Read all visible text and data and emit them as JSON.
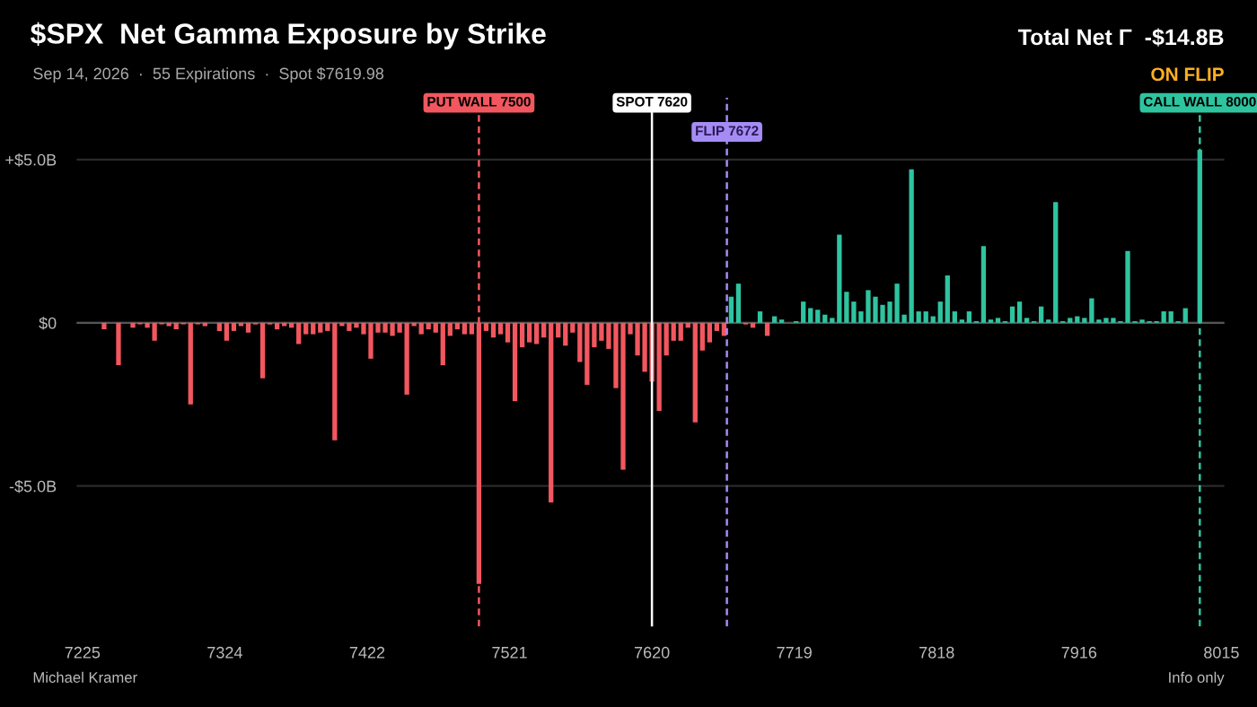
{
  "chart_data": {
    "type": "bar",
    "title": "$SPX  Net Gamma Exposure by Strike",
    "subtitle": "Sep 14, 2026  ·  55 Expirations  ·  Spot $7619.98",
    "annotations": [
      "Total Net Γ  -$14.8B",
      "ON FLIP",
      "Michael Kramer",
      "Info only"
    ],
    "series": [
      {
        "color": "#f2575f",
        "x": [
          7225,
          7230,
          7235,
          7240,
          7245,
          7250,
          7255,
          7260,
          7265,
          7270,
          7275,
          7280,
          7285,
          7290,
          7295,
          7300,
          7305,
          7310,
          7315,
          7320,
          7325,
          7330,
          7335,
          7340,
          7345,
          7350,
          7355,
          7360,
          7365,
          7370,
          7375,
          7380,
          7385,
          7390,
          7395,
          7400,
          7405,
          7410,
          7415,
          7420,
          7425,
          7430,
          7435,
          7440,
          7445,
          7450,
          7455,
          7460,
          7465,
          7470,
          7475,
          7480,
          7485,
          7490,
          7495,
          7500,
          7505,
          7510,
          7515,
          7520,
          7525,
          7530,
          7535,
          7540,
          7545,
          7550,
          7555,
          7560,
          7565,
          7570,
          7575,
          7580,
          7585,
          7590,
          7595,
          7600,
          7605,
          7610,
          7615,
          7620,
          7625,
          7630,
          7635,
          7640,
          7645,
          7650,
          7655,
          7660,
          7665,
          7670,
          7685,
          7690,
          7700
        ],
        "values": [
          0,
          0,
          0,
          -0.2,
          0,
          -1.3,
          0,
          -0.15,
          -0.05,
          -0.15,
          -0.55,
          -0.05,
          -0.1,
          -0.2,
          -0.05,
          -2.5,
          -0.05,
          -0.1,
          0,
          -0.25,
          -0.55,
          -0.25,
          -0.1,
          -0.3,
          -0.05,
          -1.7,
          -0.05,
          -0.2,
          -0.1,
          -0.15,
          -0.65,
          -0.35,
          -0.35,
          -0.3,
          -0.25,
          -3.6,
          -0.1,
          -0.25,
          -0.15,
          -0.35,
          -1.1,
          -0.3,
          -0.3,
          -0.4,
          -0.3,
          -2.2,
          -0.1,
          -0.35,
          -0.2,
          -0.3,
          -1.3,
          -0.4,
          -0.2,
          -0.35,
          -0.35,
          -8.0,
          -0.25,
          -0.45,
          -0.35,
          -0.6,
          -2.4,
          -0.75,
          -0.6,
          -0.65,
          -0.45,
          -5.5,
          -0.45,
          -0.7,
          -0.3,
          -1.2,
          -1.9,
          -0.75,
          -0.55,
          -0.8,
          -2.0,
          -4.5,
          -0.35,
          -1.0,
          -1.5,
          -1.8,
          -2.7,
          -1.0,
          -0.55,
          -0.55,
          -0.15,
          -3.05,
          -0.85,
          -0.6,
          -0.25,
          -0.4,
          -0.05,
          -0.15,
          -0.4
        ]
      },
      {
        "color": "#2ec4a0",
        "x": [
          7675,
          7680,
          7695,
          7705,
          7710,
          7715,
          7720,
          7725,
          7730,
          7735,
          7740,
          7745,
          7750,
          7755,
          7760,
          7765,
          7770,
          7775,
          7780,
          7785,
          7790,
          7795,
          7800,
          7805,
          7810,
          7815,
          7820,
          7825,
          7830,
          7835,
          7840,
          7845,
          7850,
          7855,
          7860,
          7865,
          7870,
          7875,
          7880,
          7885,
          7890,
          7895,
          7900,
          7905,
          7910,
          7915,
          7920,
          7925,
          7930,
          7935,
          7940,
          7945,
          7950,
          7955,
          7960,
          7965,
          7970,
          7975,
          7980,
          7985,
          7990,
          7995,
          8000
        ],
        "values": [
          0.8,
          1.2,
          0.35,
          0.2,
          0.1,
          0,
          0.05,
          0.65,
          0.45,
          0.4,
          0.25,
          0.15,
          2.7,
          0.95,
          0.65,
          0.35,
          1.0,
          0.8,
          0.55,
          0.65,
          1.2,
          0.25,
          4.7,
          0.35,
          0.35,
          0.2,
          0.65,
          1.45,
          0.35,
          0.1,
          0.35,
          0.05,
          2.35,
          0.1,
          0.15,
          0.05,
          0.5,
          0.65,
          0.15,
          0.05,
          0.5,
          0.1,
          3.7,
          0.05,
          0.15,
          0.2,
          0.15,
          0.75,
          0.1,
          0.15,
          0.15,
          0.05,
          2.2,
          0.05,
          0.1,
          0.05,
          0.05,
          0.35,
          0.35,
          0.05,
          0.45,
          0,
          5.3
        ]
      }
    ],
    "xlim": [
      7221,
      8017
    ],
    "xticks": [
      7225,
      {
        "value": 7323.75,
        "label": "7324"
      },
      {
        "value": 7422.5,
        "label": "7422"
      },
      {
        "value": 7521.25,
        "label": "7521"
      },
      7620,
      {
        "value": 7718.75,
        "label": "7719"
      },
      {
        "value": 7817.5,
        "label": "7818"
      },
      {
        "value": 7916.25,
        "label": "7916"
      },
      8015
    ],
    "ylim": [
      -9.3,
      6.9
    ],
    "yticks": [
      {
        "value": 5,
        "label": "+$5.0B"
      },
      {
        "value": 0,
        "label": "$0"
      },
      {
        "value": -5,
        "label": "-$5.0B"
      }
    ],
    "grid": "y",
    "legend": false,
    "ref_lines": [
      {
        "axis": "x",
        "value": 7500,
        "label": "PUT WALL 7500",
        "color": "#f2575f",
        "line_style": "dashed"
      },
      {
        "axis": "x",
        "value": 7620,
        "label": "SPOT 7620",
        "color": "#ffffff",
        "line_style": "solid"
      },
      {
        "axis": "x",
        "value": 7672,
        "label": "FLIP 7672",
        "color": "#a58cf5",
        "line_style": "dashed"
      },
      {
        "axis": "x",
        "value": 8000,
        "label": "CALL WALL 8000",
        "color": "#2ec4a0",
        "line_style": "dashed"
      }
    ]
  }
}
